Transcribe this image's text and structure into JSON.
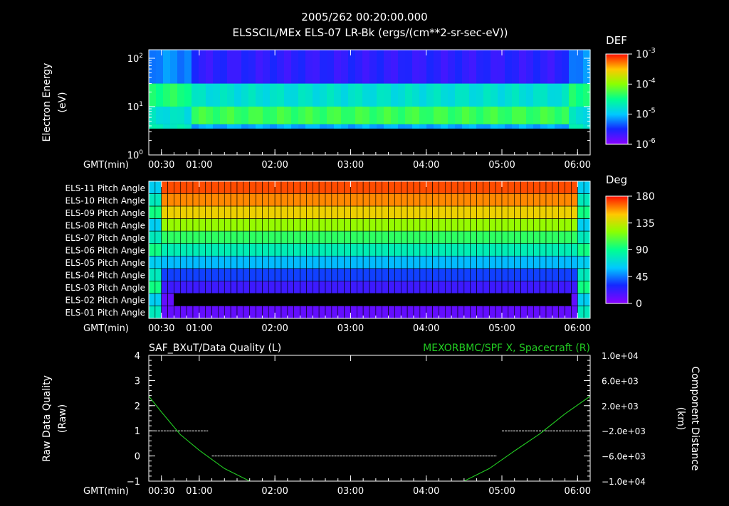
{
  "header": {
    "time_title": "2005/262 00:20:00.000",
    "product_title": "ELSSCIL/MEx ELS-07 LR-Bk  (ergs/(cm**2-sr-sec-eV))"
  },
  "time_axis": {
    "label": "GMT(min)",
    "ticks": [
      "00:30",
      "01:00",
      "02:00",
      "03:00",
      "04:00",
      "05:00",
      "06:00"
    ]
  },
  "colors": {
    "background": "#000000",
    "text": "#ffffff",
    "green_trace": "#22cc22"
  },
  "chart_data": [
    {
      "id": "energy_spectrogram",
      "type": "heatmap",
      "ylabel_line1": "Electron Energy",
      "ylabel_line2": "(eV)",
      "yscale": "log",
      "ylim": [
        1,
        150
      ],
      "y_ticks": [
        {
          "v": 100,
          "base": "10",
          "exp": "2"
        },
        {
          "v": 10,
          "base": "10",
          "exp": "1"
        },
        {
          "v": 1,
          "base": "10",
          "exp": "0"
        }
      ],
      "xlim": [
        "00:20",
        "06:10"
      ],
      "colorbar": {
        "title": "DEF",
        "scale": "log",
        "range": [
          1e-06,
          0.001
        ],
        "ticks": [
          {
            "v": 0.001,
            "base": "10",
            "exp": "-3"
          },
          {
            "v": 0.0001,
            "base": "10",
            "exp": "-4"
          },
          {
            "v": 1e-05,
            "base": "10",
            "exp": "-5"
          },
          {
            "v": 1e-06,
            "base": "10",
            "exp": "-6"
          }
        ]
      },
      "bands": [
        {
          "e_low": 1,
          "e_high": 3.5,
          "level": -7.0
        },
        {
          "e_low": 3.5,
          "e_high": 4.3,
          "level": -5.1
        },
        {
          "e_low": 4.3,
          "e_high": 10,
          "level": -4.3
        },
        {
          "e_low": 10,
          "e_high": 30,
          "level": -4.8
        },
        {
          "e_low": 30,
          "e_high": 150,
          "level": -5.6
        }
      ]
    },
    {
      "id": "pitch_angle",
      "type": "heatmap",
      "rows": [
        {
          "label": "ELS-11 Pitch Angle",
          "deg": 170
        },
        {
          "label": "ELS-10 Pitch Angle",
          "deg": 160
        },
        {
          "label": "ELS-09 Pitch Angle",
          "deg": 145
        },
        {
          "label": "ELS-08 Pitch Angle",
          "deg": 123
        },
        {
          "label": "ELS-07 Pitch Angle",
          "deg": 100
        },
        {
          "label": "ELS-06 Pitch Angle",
          "deg": 80
        },
        {
          "label": "ELS-05 Pitch Angle",
          "deg": 57
        },
        {
          "label": "ELS-04 Pitch Angle",
          "deg": 35
        },
        {
          "label": "ELS-03 Pitch Angle",
          "deg": 20
        },
        {
          "label": "ELS-02 Pitch Angle",
          "deg": 10
        },
        {
          "label": "ELS-01 Pitch Angle",
          "deg": 10
        }
      ],
      "empty_rows": [
        "ELS-02 Pitch Angle"
      ],
      "colorbar": {
        "title": "Deg",
        "range": [
          0,
          180
        ],
        "ticks": [
          "180",
          "135",
          "90",
          "45",
          "0"
        ]
      }
    },
    {
      "id": "quality_and_position",
      "type": "line",
      "title_left": "SAF_BXuT/Data Quality (L)",
      "title_right": "MEXORBMC/SPF X, Spacecraft (R)",
      "ylabel_left_line1": "Raw Data Quality",
      "ylabel_left_line2": "(Raw)",
      "ylabel_right_line1": "Component Distance",
      "ylabel_right_line2": "(km)",
      "ylim_left": [
        -1,
        4
      ],
      "y_ticks_left": [
        "4",
        "3",
        "2",
        "1",
        "0",
        "−1"
      ],
      "ylim_right": [
        -10000,
        10000
      ],
      "y_ticks_right": [
        "1.0e+04",
        "6.0e+03",
        "2.0e+03",
        "−2.0e+03",
        "−6.0e+03",
        "−1.0e+04"
      ],
      "series": [
        {
          "axis": "left",
          "color": "#ffffff",
          "segments": [
            {
              "t_start": "00:25",
              "t_end": "01:07",
              "value": 1
            },
            {
              "t_start": "01:10",
              "t_end": "04:56",
              "value": 0
            },
            {
              "t_start": "05:00",
              "t_end": "06:05",
              "value": 1
            }
          ]
        },
        {
          "axis": "right",
          "color": "#22cc22",
          "points": [
            {
              "t": "00:20",
              "km": 3500
            },
            {
              "t": "00:30",
              "km": 1000
            },
            {
              "t": "00:45",
              "km": -2600
            },
            {
              "t": "01:00",
              "km": -5100
            },
            {
              "t": "01:20",
              "km": -8000
            },
            {
              "t": "01:40",
              "km": -10000
            },
            {
              "t": "01:50",
              "km": -10000
            },
            {
              "t": "04:20",
              "km": -10000
            },
            {
              "t": "04:30",
              "km": -10000
            },
            {
              "t": "04:50",
              "km": -8000
            },
            {
              "t": "05:10",
              "km": -5200
            },
            {
              "t": "05:30",
              "km": -2500
            },
            {
              "t": "05:50",
              "km": 700
            },
            {
              "t": "06:10",
              "km": 3500
            }
          ]
        }
      ]
    }
  ]
}
